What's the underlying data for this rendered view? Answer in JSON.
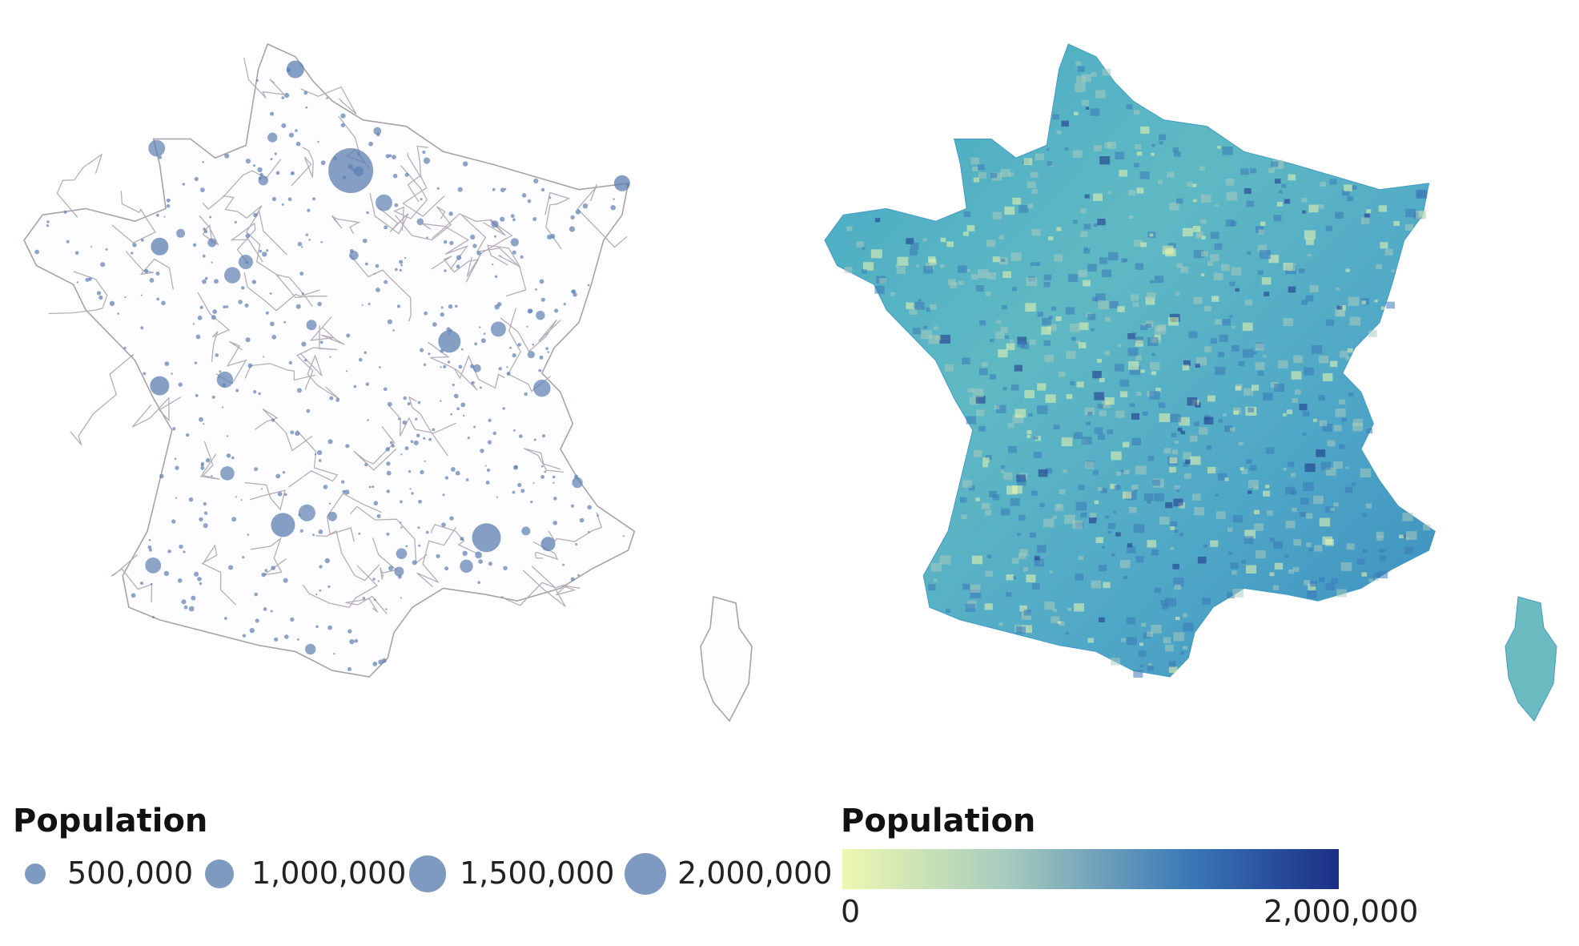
{
  "maps": [
    {
      "type": "proportional-symbols",
      "region": "France",
      "symbol_color": "#5b7eb0",
      "boundary_color": "#a8a1a8",
      "legend": {
        "title": "Population",
        "items": [
          {
            "label": "500,000",
            "value": 500000
          },
          {
            "label": "1,000,000",
            "value": 1000000
          },
          {
            "label": "1,500,000",
            "value": 1500000
          },
          {
            "label": "2,000,000",
            "value": 2000000
          }
        ]
      }
    },
    {
      "type": "choropleth",
      "region": "France",
      "legend": {
        "title": "Population",
        "min_label": "0",
        "max_label": "2,000,000",
        "min": 0,
        "max": 2000000,
        "colors": [
          "#edf8b1",
          "#a7cbbd",
          "#3a78b8",
          "#1b2f86"
        ]
      }
    }
  ]
}
